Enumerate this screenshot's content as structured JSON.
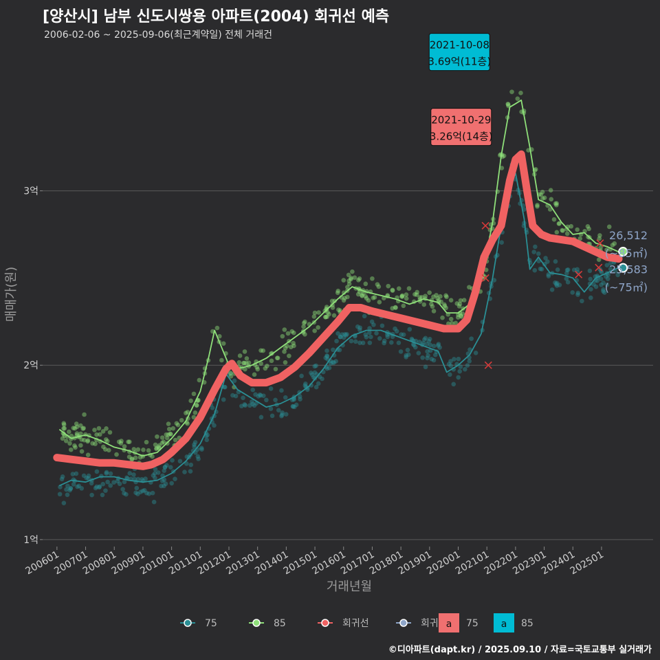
{
  "title": "[양산시] 남부 신도시쌍용 아파트(2004) 회귀선 예측",
  "subtitle": "2006-02-06 ~ 2025-09-06(최근계약일) 전체 거래건",
  "caption": "©디아파트(dapt.kr) / 2025.09.10 / 자료=국토교통부 실거래가",
  "colors": {
    "background": "#2b2b2d",
    "series_75": "#2a8f95",
    "series_85": "#8fe07a",
    "regression": "#f06262",
    "prediction": "#8fa6c9",
    "box_85": "#00bcd4",
    "box_75": "#f07070",
    "grid": "#5a5a5a"
  },
  "chart_data": {
    "type": "line",
    "title": "[양산시] 남부 신도시쌍용 아파트(2004) 회귀선 예측",
    "xlabel": "거래년월",
    "ylabel": "매매가(원)",
    "x_ticks": [
      "200601",
      "200701",
      "200801",
      "200901",
      "201001",
      "201101",
      "201201",
      "201301",
      "201401",
      "201501",
      "201601",
      "201701",
      "201801",
      "201901",
      "202001",
      "202101",
      "202201",
      "202301",
      "202401",
      "202501"
    ],
    "y_ticks": [
      {
        "value": 1.0,
        "label": "1억"
      },
      {
        "value": 2.0,
        "label": "2억"
      },
      {
        "value": 3.0,
        "label": "3억"
      }
    ],
    "xlim": [
      2005.5,
      2026.8
    ],
    "ylim": [
      0.96,
      3.85
    ],
    "grid": true,
    "legend_position": "bottom",
    "series": [
      {
        "name": "75",
        "role": "75",
        "x": [
          2006.1,
          2006.5,
          2007.0,
          2007.5,
          2008.0,
          2008.5,
          2009.0,
          2009.5,
          2010.0,
          2010.5,
          2011.0,
          2011.5,
          2011.9,
          2012.3,
          2012.8,
          2013.3,
          2013.8,
          2014.3,
          2014.8,
          2015.3,
          2015.8,
          2016.3,
          2016.8,
          2017.3,
          2017.8,
          2018.3,
          2018.8,
          2019.3,
          2019.6,
          2020.0,
          2020.4,
          2020.8,
          2021.2,
          2021.5,
          2021.8,
          2022.0,
          2022.3,
          2022.5,
          2022.8,
          2023.2,
          2023.6,
          2024.0,
          2024.4,
          2024.8,
          2025.2,
          2025.6
        ],
        "values": [
          1.31,
          1.34,
          1.33,
          1.36,
          1.36,
          1.34,
          1.33,
          1.34,
          1.38,
          1.45,
          1.55,
          1.72,
          1.95,
          1.86,
          1.81,
          1.76,
          1.78,
          1.82,
          1.88,
          1.98,
          2.1,
          2.17,
          2.2,
          2.2,
          2.17,
          2.14,
          2.11,
          2.08,
          1.96,
          2.0,
          2.06,
          2.18,
          2.5,
          2.8,
          3.02,
          3.1,
          2.84,
          2.55,
          2.62,
          2.53,
          2.52,
          2.5,
          2.42,
          2.5,
          2.53,
          2.56
        ]
      },
      {
        "name": "85",
        "role": "85",
        "x": [
          2006.1,
          2006.5,
          2007.0,
          2007.5,
          2008.0,
          2008.5,
          2009.0,
          2009.5,
          2010.0,
          2010.5,
          2011.0,
          2011.3,
          2011.5,
          2011.7,
          2012.0,
          2012.3,
          2012.8,
          2013.3,
          2013.8,
          2014.3,
          2014.8,
          2015.3,
          2015.8,
          2016.3,
          2016.8,
          2017.3,
          2017.8,
          2018.3,
          2018.8,
          2019.3,
          2019.6,
          2020.0,
          2020.4,
          2020.8,
          2021.2,
          2021.5,
          2021.8,
          2022.0,
          2022.2,
          2022.5,
          2022.8,
          2023.2,
          2023.6,
          2024.0,
          2024.4,
          2024.8,
          2025.2,
          2025.6
        ],
        "values": [
          1.63,
          1.58,
          1.6,
          1.57,
          1.53,
          1.51,
          1.48,
          1.5,
          1.58,
          1.68,
          1.85,
          2.05,
          2.2,
          2.12,
          2.0,
          1.98,
          2.0,
          2.04,
          2.1,
          2.16,
          2.22,
          2.3,
          2.38,
          2.45,
          2.42,
          2.4,
          2.38,
          2.35,
          2.38,
          2.36,
          2.3,
          2.3,
          2.35,
          2.48,
          2.82,
          3.2,
          3.48,
          3.5,
          3.52,
          3.25,
          2.95,
          2.92,
          2.82,
          2.75,
          2.76,
          2.7,
          2.68,
          2.65
        ]
      },
      {
        "name": "회귀선",
        "role": "regression",
        "x": [
          2006.0,
          2006.5,
          2007.0,
          2007.5,
          2008.0,
          2008.5,
          2009.0,
          2009.3,
          2009.7,
          2010.0,
          2010.5,
          2011.0,
          2011.5,
          2011.9,
          2012.1,
          2012.4,
          2012.8,
          2013.3,
          2013.8,
          2014.3,
          2014.8,
          2015.3,
          2015.8,
          2016.2,
          2016.6,
          2017.0,
          2017.5,
          2018.0,
          2018.5,
          2019.0,
          2019.5,
          2020.0,
          2020.3,
          2020.6,
          2020.9,
          2021.2,
          2021.5,
          2021.8,
          2022.0,
          2022.2,
          2022.4,
          2022.6,
          2022.9,
          2023.2,
          2023.6,
          2024.0,
          2024.4,
          2024.8,
          2025.2,
          2025.6
        ],
        "values": [
          1.47,
          1.46,
          1.45,
          1.44,
          1.44,
          1.43,
          1.42,
          1.43,
          1.46,
          1.5,
          1.58,
          1.7,
          1.86,
          1.98,
          2.01,
          1.94,
          1.9,
          1.9,
          1.93,
          1.99,
          2.07,
          2.16,
          2.25,
          2.33,
          2.33,
          2.31,
          2.29,
          2.27,
          2.25,
          2.23,
          2.21,
          2.21,
          2.26,
          2.42,
          2.62,
          2.72,
          2.8,
          3.06,
          3.18,
          3.21,
          3.0,
          2.8,
          2.75,
          2.73,
          2.72,
          2.71,
          2.68,
          2.65,
          2.62,
          2.61
        ]
      }
    ],
    "highlights": [
      {
        "date": "2021-10-08",
        "text": "3.69억(11층)",
        "series": "85",
        "x": 2021.77,
        "value": 3.69
      },
      {
        "date": "2021-10-29",
        "text": "3.26억(14층)",
        "series": "75",
        "x": 2021.83,
        "value": 3.26
      }
    ],
    "cancelled_marks": [
      {
        "x": 2020.95,
        "value": 2.8
      },
      {
        "x": 2020.95,
        "value": 2.5
      },
      {
        "x": 2021.05,
        "value": 2.0
      },
      {
        "x": 2024.2,
        "value": 2.52
      },
      {
        "x": 2024.9,
        "value": 2.56
      },
      {
        "x": 2024.95,
        "value": 2.7
      }
    ],
    "end_labels": [
      {
        "series": "85",
        "x": 2025.75,
        "value": 2.6512,
        "price": "26,512",
        "area": "(~85㎡)"
      },
      {
        "series": "75",
        "x": 2025.75,
        "value": 2.5583,
        "price": "25,583",
        "area": "(~75㎡)"
      }
    ],
    "legend": {
      "items": [
        {
          "label": "75",
          "role": "75"
        },
        {
          "label": "85",
          "role": "85"
        },
        {
          "label": "회귀선",
          "role": "regression"
        },
        {
          "label": "회귀예측",
          "role": "prediction"
        }
      ],
      "boxes": [
        {
          "glyph": "a",
          "label": "75",
          "color": "#f07070"
        },
        {
          "glyph": "a",
          "label": "85",
          "color": "#00bcd4"
        }
      ]
    }
  }
}
